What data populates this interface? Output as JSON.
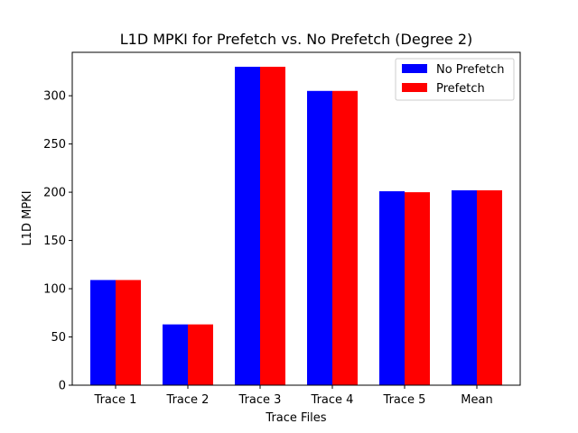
{
  "chart_data": {
    "type": "bar",
    "title": "L1D MPKI for Prefetch vs. No Prefetch (Degree 2)",
    "xlabel": "Trace Files",
    "ylabel": "L1D MPKI",
    "categories": [
      "Trace 1",
      "Trace 2",
      "Trace 3",
      "Trace 4",
      "Trace 5",
      "Mean"
    ],
    "series": [
      {
        "name": "No Prefetch",
        "color": "#0000ff",
        "values": [
          109,
          63,
          330,
          305,
          201,
          202
        ]
      },
      {
        "name": "Prefetch",
        "color": "#ff0000",
        "values": [
          109,
          63,
          330,
          305,
          200,
          202
        ]
      }
    ],
    "ylim": [
      0,
      345
    ],
    "yticks": [
      0,
      50,
      100,
      150,
      200,
      250,
      300
    ],
    "grid": false,
    "legend": "top-right"
  }
}
